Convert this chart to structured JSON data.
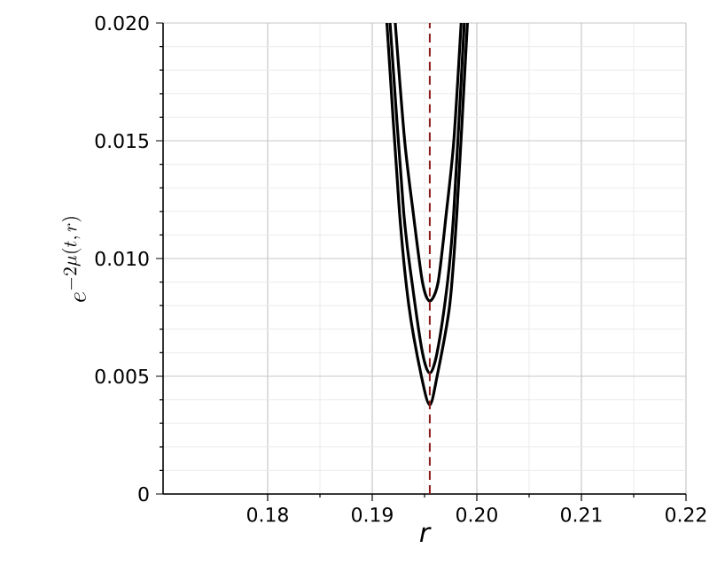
{
  "chart_data": {
    "type": "line",
    "xlabel": "r",
    "ylabel": "e^{-2\\mu(t,\\,r)}",
    "xlim": [
      0.17,
      0.22
    ],
    "xticks": [
      0.18,
      0.19,
      {
        "value": 0.2,
        "label": "0.20"
      },
      0.21,
      0.22
    ],
    "ylim": [
      0,
      0.02
    ],
    "yticks": [
      {
        "value": 0,
        "label": "0"
      },
      {
        "value": 0.005,
        "label": "0.005"
      },
      {
        "value": 0.01,
        "label": "0.010"
      },
      {
        "value": 0.015,
        "label": "0.015"
      },
      {
        "value": 0.02,
        "label": "0.020"
      }
    ],
    "grid": true,
    "series": [
      {
        "color": "#000000",
        "x": [
          0.1922,
          0.1931,
          0.1939,
          0.1948,
          0.1955,
          0.1963,
          0.1971,
          0.1978,
          0.1985
        ],
        "values": [
          0.02,
          0.015,
          0.012,
          0.009,
          0.0082,
          0.009,
          0.012,
          0.015,
          0.02
        ]
      },
      {
        "color": "#000000",
        "x": [
          0.1917,
          0.193,
          0.1938,
          0.1948,
          0.1955,
          0.1962,
          0.1972,
          0.1978,
          0.1988
        ],
        "values": [
          0.02,
          0.012,
          0.009,
          0.006,
          0.00514,
          0.006,
          0.009,
          0.012,
          0.02
        ]
      },
      {
        "color": "#000000",
        "x": [
          0.1914,
          0.1926,
          0.1935,
          0.1947,
          0.1955,
          0.1962,
          0.1974,
          0.1981,
          0.1991
        ],
        "values": [
          0.02,
          0.012,
          0.008,
          0.005,
          0.00378,
          0.005,
          0.008,
          0.012,
          0.02
        ]
      }
    ],
    "ref_lines": [
      {
        "axis": "x",
        "value": 0.1955,
        "color": "#8b1a1a",
        "line_style": "dashed"
      }
    ]
  }
}
